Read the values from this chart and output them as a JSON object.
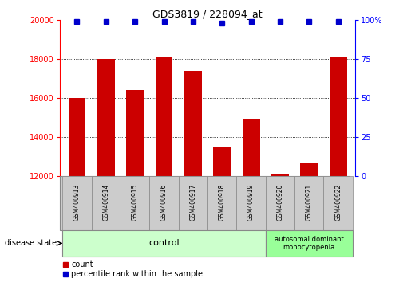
{
  "title": "GDS3819 / 228094_at",
  "categories": [
    "GSM400913",
    "GSM400914",
    "GSM400915",
    "GSM400916",
    "GSM400917",
    "GSM400918",
    "GSM400919",
    "GSM400920",
    "GSM400921",
    "GSM400922"
  ],
  "bar_values": [
    16000,
    18000,
    16400,
    18100,
    17400,
    13500,
    14900,
    12100,
    12700,
    18100
  ],
  "percentile_values": [
    99,
    99,
    99,
    99,
    99,
    98,
    99,
    99,
    99,
    99
  ],
  "bar_color": "#cc0000",
  "percentile_color": "#0000cc",
  "ylim_left": [
    12000,
    20000
  ],
  "ylim_right": [
    0,
    100
  ],
  "yticks_left": [
    12000,
    14000,
    16000,
    18000,
    20000
  ],
  "yticks_right": [
    0,
    25,
    50,
    75,
    100
  ],
  "control_samples": 7,
  "disease_label": "autosomal dominant\nmonocytopenia",
  "control_label": "control",
  "disease_state_label": "disease state",
  "legend_count_label": "count",
  "legend_percentile_label": "percentile rank within the sample",
  "control_bg_color": "#ccffcc",
  "disease_bg_color": "#99ff99",
  "sample_area_bg": "#cccccc"
}
